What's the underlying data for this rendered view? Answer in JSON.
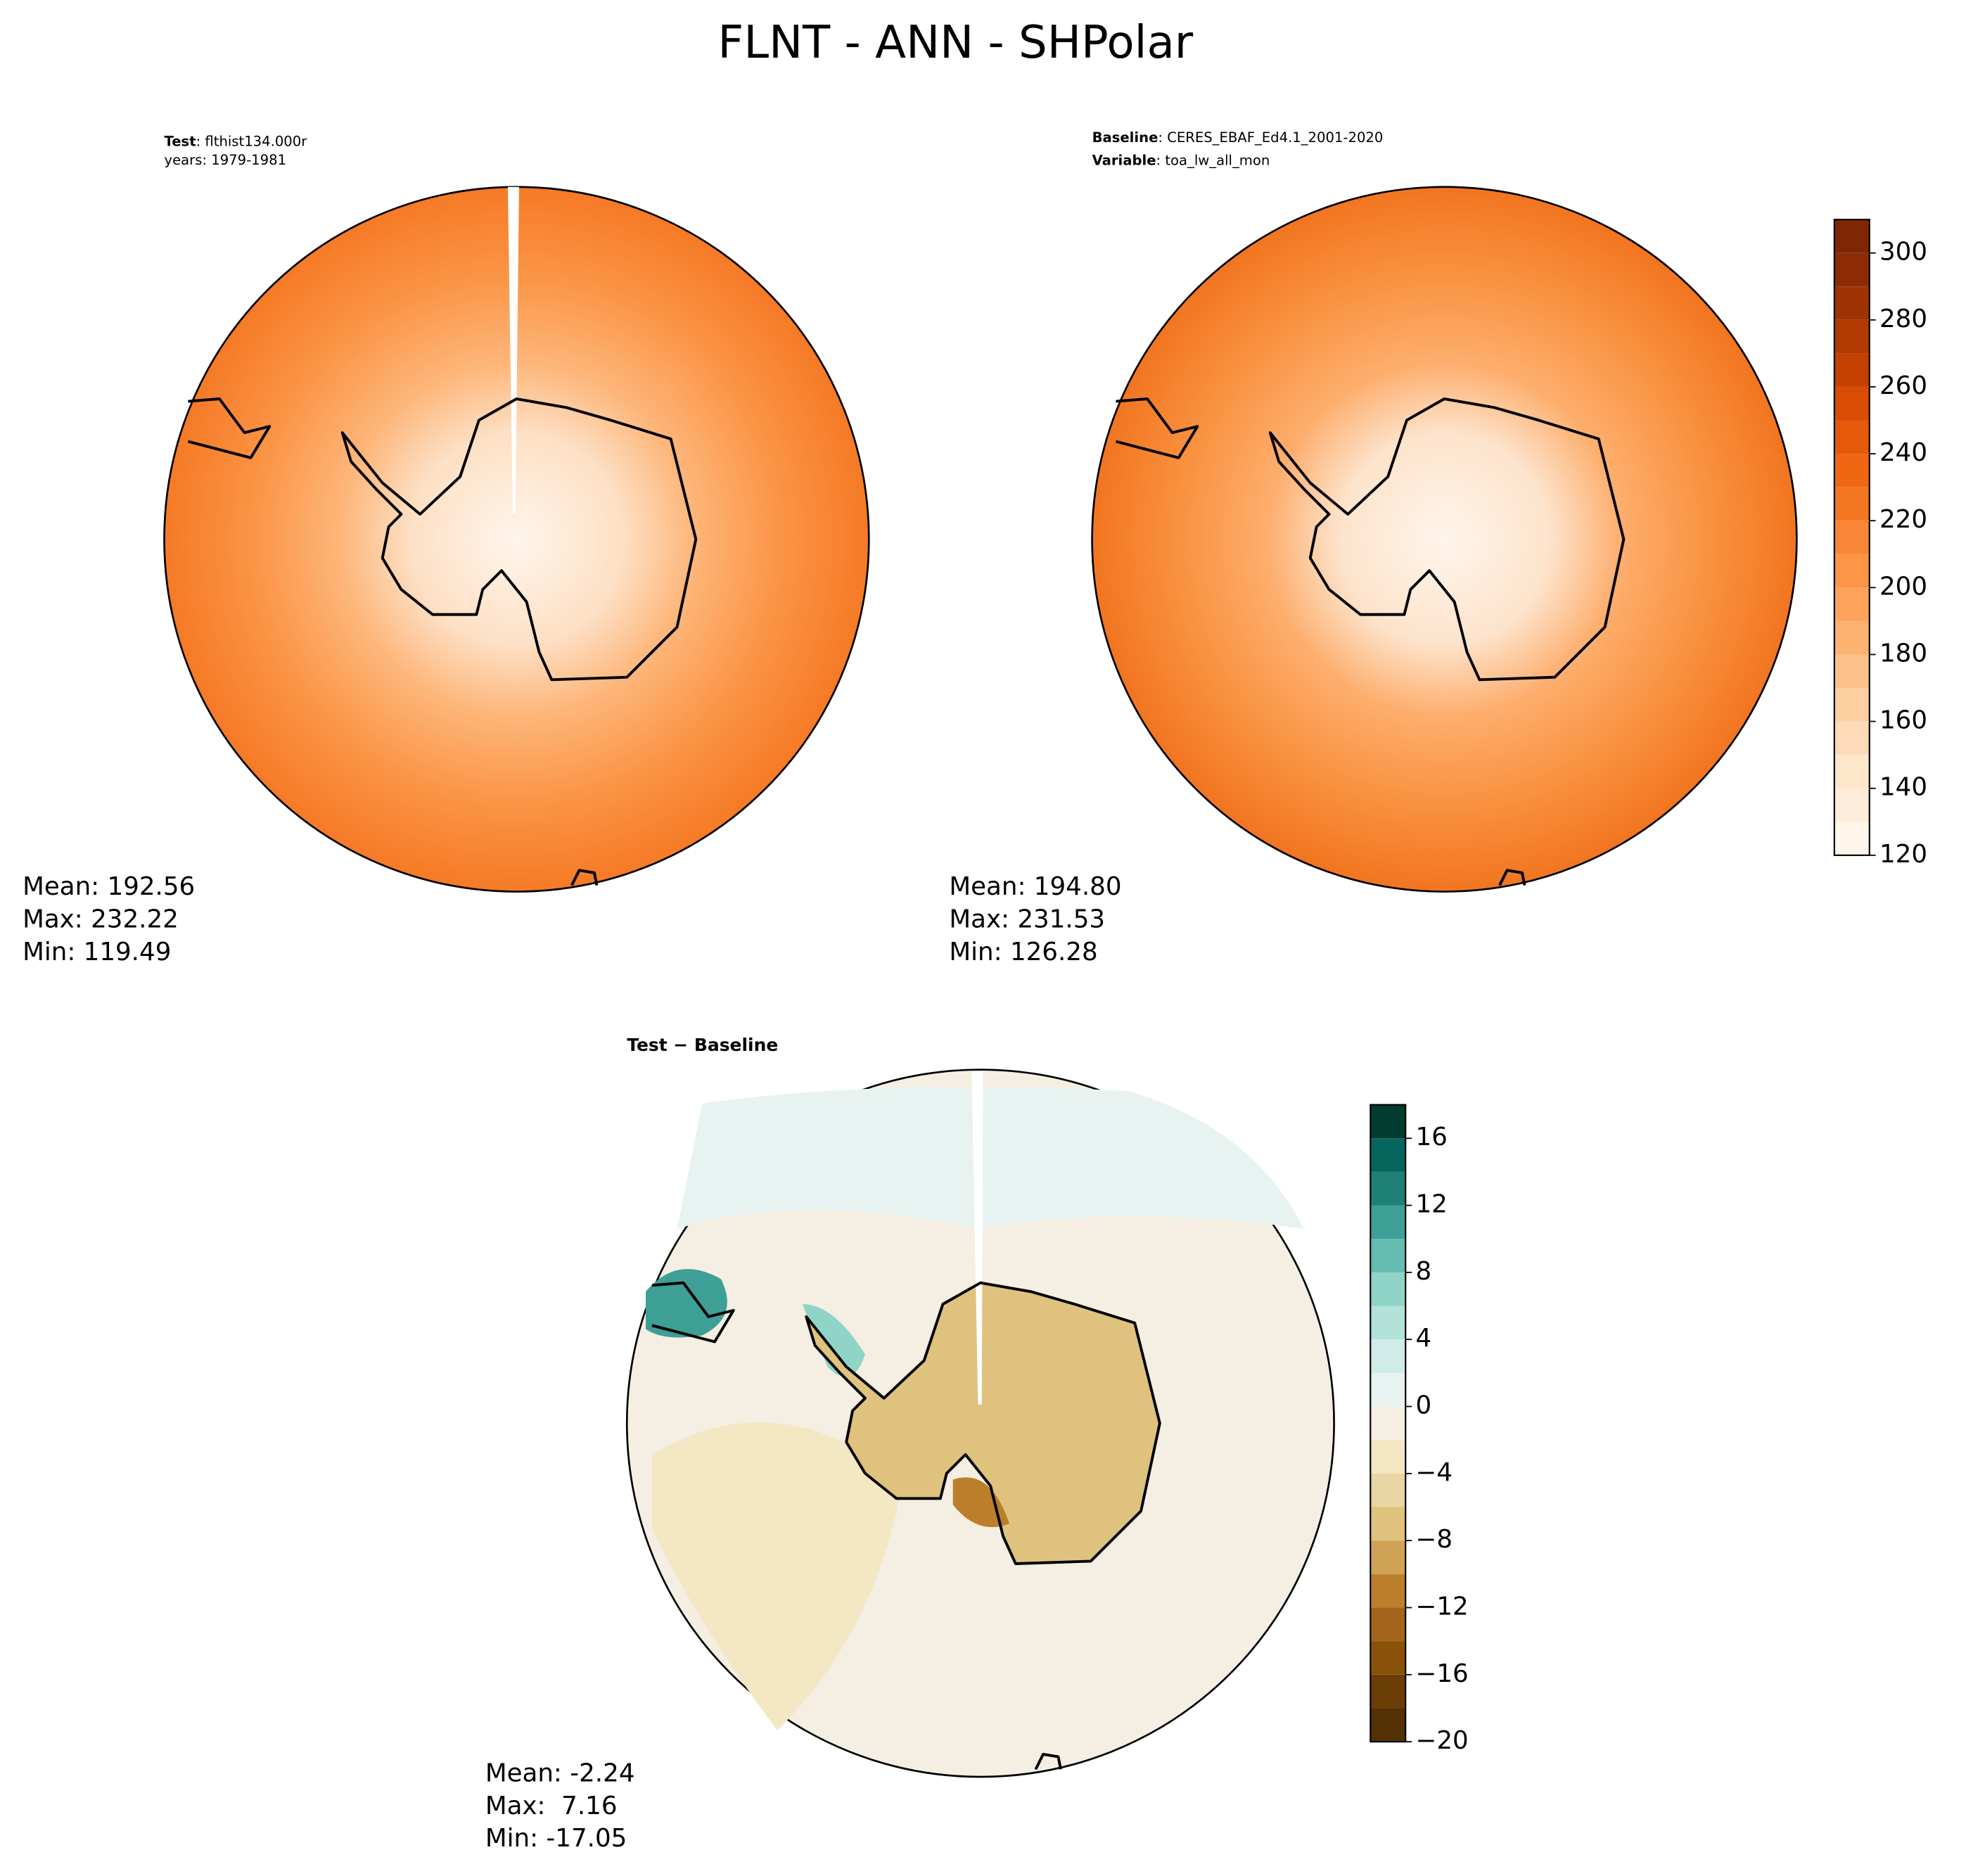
{
  "title": "FLNT - ANN - SHPolar",
  "panels": [
    {
      "label_key": "Test",
      "label_value": ": flthist134.000r",
      "line2": "years: 1979-1981",
      "stats": [
        "Mean: 192.56",
        "Max: 232.22",
        "Min: 119.49"
      ]
    },
    {
      "label_key": "Baseline",
      "label_value": ": CERES_EBAF_Ed4.1_2001-2020",
      "line2_key": "Variable",
      "line2_value": ": toa_lw_all_mon",
      "stats": [
        "Mean: 194.80",
        "Max: 231.53",
        "Min: 126.28"
      ]
    },
    {
      "label_key": "Test − Baseline",
      "stats": [
        "Mean: -2.24",
        "Max:  7.16",
        "Min: -17.05"
      ]
    }
  ],
  "colorbars": [
    {
      "ylim": [
        120,
        310
      ],
      "yticks": [
        120,
        140,
        160,
        180,
        200,
        220,
        240,
        260,
        280,
        300
      ],
      "levels": [
        120,
        130,
        140,
        150,
        160,
        170,
        180,
        190,
        200,
        210,
        220,
        230,
        240,
        250,
        260,
        270,
        280,
        290,
        300,
        310
      ],
      "colors": [
        "#fff5eb",
        "#feeddb",
        "#fee6cb",
        "#fddbb8",
        "#fdd0a2",
        "#fdc18a",
        "#fdb272",
        "#fda35c",
        "#fd9446",
        "#f98636",
        "#f57622",
        "#ef6713",
        "#e5590a",
        "#d94c03",
        "#c54102",
        "#b13a03",
        "#9f3303",
        "#8d2c04",
        "#7f2704"
      ]
    },
    {
      "ylim": [
        -20,
        18
      ],
      "yticks": [
        {
          "value": -20,
          "label": "−20"
        },
        {
          "value": -16,
          "label": "−16"
        },
        {
          "value": -12,
          "label": "−12"
        },
        {
          "value": -8,
          "label": "−8"
        },
        {
          "value": -4,
          "label": "−4"
        },
        0,
        4,
        8,
        12,
        16
      ],
      "levels": [
        -20,
        -18,
        -16,
        -14,
        -12,
        -10,
        -8,
        -6,
        -4,
        -2,
        0,
        2,
        4,
        6,
        8,
        10,
        12,
        14,
        16,
        18
      ],
      "colors": [
        "#543005",
        "#6b3e07",
        "#8a510b",
        "#a2651b",
        "#bb7f2c",
        "#cfa255",
        "#dfc27d",
        "#e9d6a4",
        "#f3e7c4",
        "#f5f0e3",
        "#e8f3f1",
        "#d0ece8",
        "#b3e2d9",
        "#8fd4c6",
        "#64bdb0",
        "#3e9f97",
        "#1f8077",
        "#06665d",
        "#003c30"
      ]
    }
  ]
}
